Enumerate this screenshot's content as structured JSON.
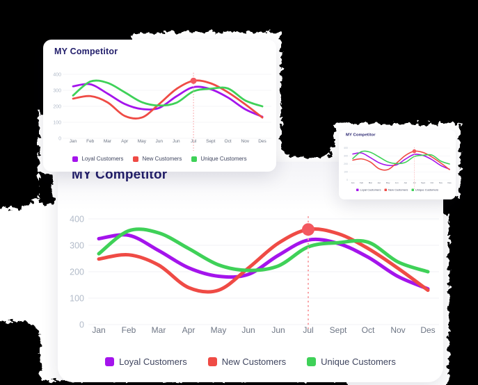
{
  "cards": {
    "top_card": {
      "title": "MY Competitor"
    },
    "mini_card": {
      "title": "MY Competitor"
    },
    "main_card": {
      "title": "MY Competitor"
    }
  },
  "chart_data": {
    "type": "line",
    "title": "MY Competitor",
    "categories": [
      "Jan",
      "Feb",
      "Mar",
      "Apr",
      "May",
      "Jun",
      "Jun",
      "Jul",
      "Sept",
      "Oct",
      "Nov",
      "Des"
    ],
    "series": [
      {
        "name": "Loyal Customers",
        "color": "#a414ec",
        "values": [
          325,
          338,
          280,
          215,
          183,
          190,
          262,
          320,
          307,
          255,
          182,
          135
        ]
      },
      {
        "name": "New Customers",
        "color": "#ef4b45",
        "values": [
          248,
          264,
          225,
          140,
          130,
          214,
          308,
          360,
          344,
          288,
          213,
          130
        ]
      },
      {
        "name": "Unique Customers",
        "color": "#3fd158",
        "values": [
          268,
          355,
          347,
          288,
          226,
          205,
          222,
          294,
          310,
          312,
          237,
          200
        ]
      }
    ],
    "xlabel": "",
    "ylabel": "",
    "ylim": [
      0,
      400
    ],
    "yticks": [
      0,
      100,
      200,
      300,
      400
    ],
    "grid": true,
    "legend_position": "bottom",
    "highlight": {
      "category_index": 7,
      "category": "Jul",
      "series": "New Customers",
      "value": 360,
      "marker_color": "#f35860",
      "line_color": "#f9a2a6"
    }
  },
  "colors": {
    "title": "#221e6b",
    "axis_tick": "#b2bbc9",
    "axis_month": "#6d7584",
    "legend_text": "#3f455f",
    "grid": "#f0f1f5",
    "card_bg": "#ffffff",
    "shadow_blob": "#060606"
  }
}
